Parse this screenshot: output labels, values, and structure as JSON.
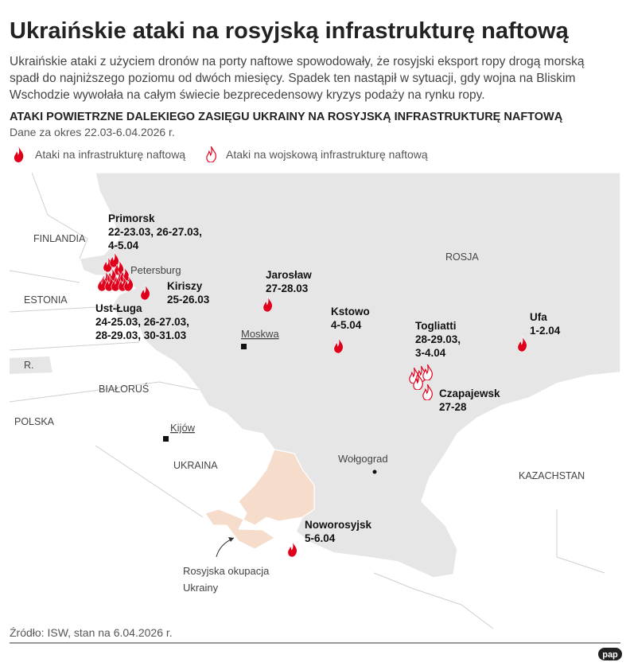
{
  "header": {
    "title": "Ukraińskie ataki na rosyjską infrastrukturę naftową",
    "subtitle": [
      "Ukraińskie ataki z użyciem dronów na porty naftowe spowodowały, że rosyjski eksport ropy drogą morską",
      "spadł do najniższego poziomu od dwóch miesięcy. Spadek ten nastąpił w sytuacji, gdy wojna na Bliskim",
      "Wschodzie wywołała na całym świecie bezprecedensowy kryzys podaży na rynku ropy."
    ]
  },
  "map": {
    "title": "ATAKI POWIETRZNE DALEKIEGO ZASIĘGU UKRAINY NA ROSYJSKĄ INFRASTRUKTURĘ NAFTOWĄ",
    "period": "Dane za okres 22.03-6.04.2026 r."
  },
  "legend": [
    "Ataki na infrastrukturę naftową",
    "Ataki na wojskową infrastrukturę naftową"
  ],
  "places": {
    "countries": [
      "FINLANDIA",
      "ESTONIA",
      "R.",
      "BIAŁORUŚ",
      "POLSKA",
      "UKRAINA",
      "ROSJA",
      "KAZACHSTAN"
    ],
    "cities": [
      "Petersburg",
      "Moskwa",
      "Kijów",
      "Wołgograd"
    ],
    "occupation": [
      "Rosyjska okupacja",
      "Ukrainy"
    ]
  },
  "attacks": [
    {
      "name": "Primorsk",
      "dates": [
        "22-23.03, 26-27.03,",
        "4-5.04"
      ]
    },
    {
      "name": "Kiriszy",
      "dates": [
        "25-26.03"
      ]
    },
    {
      "name": "Ust-Ługa",
      "dates": [
        "24-25.03, 26-27.03,",
        "28-29.03, 30-31.03"
      ]
    },
    {
      "name": "Jarosław",
      "dates": [
        "27-28.03"
      ]
    },
    {
      "name": "Kstowo",
      "dates": [
        "4-5.04"
      ]
    },
    {
      "name": "Togliatti",
      "dates": [
        "28-29.03,",
        "3-4.04"
      ]
    },
    {
      "name": "Czapajewsk",
      "dates": [
        "27-28"
      ]
    },
    {
      "name": "Ufa",
      "dates": [
        "1-2.04"
      ]
    },
    {
      "name": "Noworosyjsk",
      "dates": [
        "5-6.04"
      ]
    }
  ],
  "footer": {
    "source": "Źródło: ISW, stan na 6.04.2026 r.",
    "logo": "pap"
  }
}
